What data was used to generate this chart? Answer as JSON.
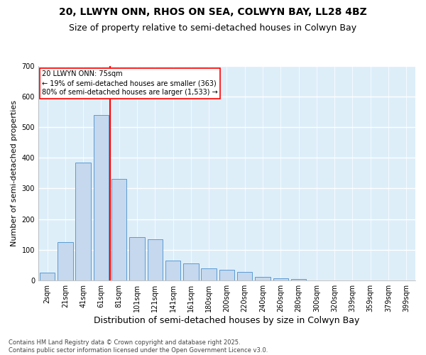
{
  "title1": "20, LLWYN ONN, RHOS ON SEA, COLWYN BAY, LL28 4BZ",
  "title2": "Size of property relative to semi-detached houses in Colwyn Bay",
  "xlabel": "Distribution of semi-detached houses by size in Colwyn Bay",
  "ylabel": "Number of semi-detached properties",
  "categories": [
    "2sqm",
    "21sqm",
    "41sqm",
    "61sqm",
    "81sqm",
    "101sqm",
    "121sqm",
    "141sqm",
    "161sqm",
    "180sqm",
    "200sqm",
    "220sqm",
    "240sqm",
    "260sqm",
    "280sqm",
    "300sqm",
    "320sqm",
    "339sqm",
    "359sqm",
    "379sqm",
    "399sqm"
  ],
  "values": [
    25,
    125,
    385,
    540,
    330,
    140,
    135,
    65,
    55,
    38,
    35,
    28,
    12,
    7,
    3,
    0,
    0,
    0,
    0,
    0,
    0
  ],
  "bar_color": "#c5d8ed",
  "bar_edge_color": "#5b9bd5",
  "vline_color": "red",
  "vline_pos": 3.5,
  "annotation_text": "20 LLWYN ONN: 75sqm\n← 19% of semi-detached houses are smaller (363)\n80% of semi-detached houses are larger (1,533) →",
  "annotation_box_color": "white",
  "annotation_box_edge": "red",
  "footer": "Contains HM Land Registry data © Crown copyright and database right 2025.\nContains public sector information licensed under the Open Government Licence v3.0.",
  "ylim": [
    0,
    700
  ],
  "yticks": [
    0,
    100,
    200,
    300,
    400,
    500,
    600,
    700
  ],
  "background_color": "#ddeef9",
  "grid_color": "white",
  "title_fontsize": 10,
  "subtitle_fontsize": 9,
  "tick_fontsize": 7,
  "ylabel_fontsize": 8,
  "xlabel_fontsize": 9
}
